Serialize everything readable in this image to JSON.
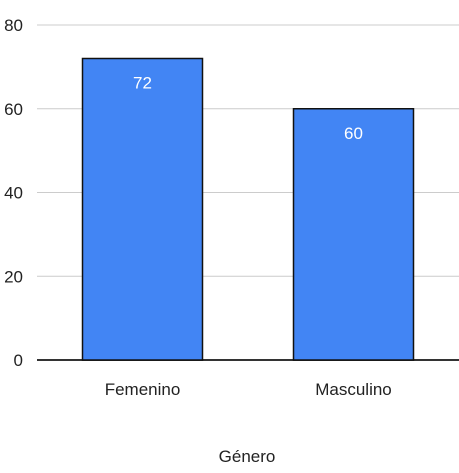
{
  "chart_data": {
    "type": "bar",
    "categories": [
      "Femenino",
      "Masculino"
    ],
    "values": [
      72,
      60
    ],
    "value_labels": [
      "72",
      "60"
    ],
    "title": "",
    "xlabel": "Género",
    "ylabel": "",
    "ylim": [
      0,
      80
    ],
    "yticks": [
      0,
      20,
      40,
      60,
      80
    ],
    "ytick_labels": [
      "0",
      "20",
      "40",
      "60",
      "80"
    ],
    "grid": true,
    "legend": "none",
    "colors": {
      "bar": "#4285f4",
      "bar_outline": "#111111",
      "grid": "#cccccc",
      "baseline": "#333333",
      "value_label": "#ffffff",
      "text": "#222222"
    }
  }
}
